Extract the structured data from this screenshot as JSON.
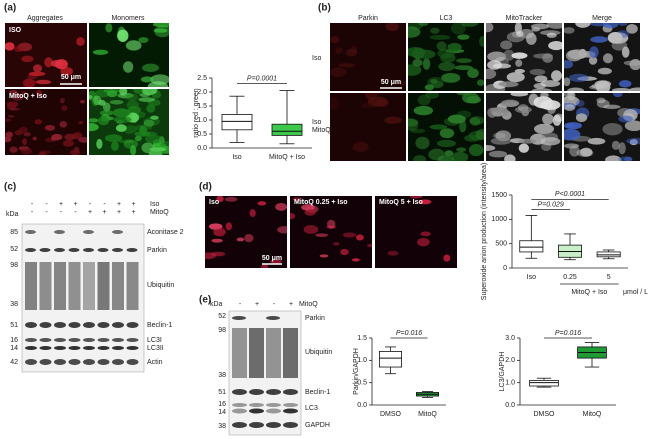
{
  "chart_data": [
    {
      "type": "box",
      "ylabel": "ratio red : green",
      "categories": [
        "Iso",
        "MitoQ + Iso"
      ],
      "boxes": [
        {
          "min": 0.2,
          "q1": 0.65,
          "median": 0.95,
          "q3": 1.2,
          "max": 1.85
        },
        {
          "min": 0.15,
          "q1": 0.45,
          "median": 0.6,
          "q3": 0.85,
          "max": 2.05
        }
      ],
      "colors": [
        "#ffffff",
        "#3cc84a"
      ],
      "ylim": [
        0,
        2.5
      ],
      "yticks": [
        {
          "value": 0,
          "label": "0.0"
        },
        {
          "value": 0.5,
          "label": "0.5"
        },
        {
          "value": 1,
          "label": "1.0"
        },
        {
          "value": 1.5,
          "label": "1.5"
        },
        {
          "value": 2,
          "label": "2.0"
        },
        {
          "value": 2.5,
          "label": "2.5"
        }
      ],
      "annotations": [
        "P=0.0001"
      ]
    },
    {
      "type": "box",
      "ylabel": "Superoxide anion production (intensity/area)",
      "categories": [
        "Iso",
        "0.25",
        "5"
      ],
      "x_group_label": "MitoQ + Iso",
      "x_unit": "μmol / L",
      "boxes": [
        {
          "min": 200,
          "q1": 330,
          "median": 430,
          "q3": 560,
          "max": 1080
        },
        {
          "min": 170,
          "q1": 220,
          "median": 340,
          "q3": 470,
          "max": 700
        },
        {
          "min": 190,
          "q1": 230,
          "median": 270,
          "q3": 330,
          "max": 370
        }
      ],
      "colors": [
        "#ffffff",
        "#c8efc8",
        "#ffffff"
      ],
      "ylim": [
        0,
        1500
      ],
      "yticks": [
        0,
        500,
        1000,
        1500
      ],
      "annotations": [
        "P=0.029",
        "P<0.0001"
      ]
    },
    {
      "type": "box",
      "ylabel": "Parkin/GAPDH",
      "categories": [
        "DMSO",
        "MitoQ"
      ],
      "boxes": [
        {
          "min": 0.7,
          "q1": 0.85,
          "median": 1.05,
          "q3": 1.2,
          "max": 1.3
        },
        {
          "min": 0.17,
          "q1": 0.2,
          "median": 0.24,
          "q3": 0.28,
          "max": 0.3
        }
      ],
      "colors": [
        "#ffffff",
        "#1f9a35"
      ],
      "ylim": [
        0,
        1.5
      ],
      "yticks": [
        {
          "value": 0,
          "label": "0.0"
        },
        {
          "value": 0.5,
          "label": "0.5"
        },
        {
          "value": 1,
          "label": "1.0"
        },
        {
          "value": 1.5,
          "label": "1.5"
        }
      ],
      "annotations": [
        "P=0.016"
      ]
    },
    {
      "type": "box",
      "ylabel": "LC3/GAPDH",
      "categories": [
        "DMSO",
        "MitoQ"
      ],
      "boxes": [
        {
          "min": 0.8,
          "q1": 0.85,
          "median": 1.0,
          "q3": 1.1,
          "max": 1.2
        },
        {
          "min": 1.7,
          "q1": 2.1,
          "median": 2.35,
          "q3": 2.6,
          "max": 2.8
        }
      ],
      "colors": [
        "#ffffff",
        "#1f9a35"
      ],
      "ylim": [
        0,
        3
      ],
      "yticks": [
        {
          "value": 0,
          "label": "0.0"
        },
        {
          "value": 1,
          "label": "1.0"
        },
        {
          "value": 2,
          "label": "2.0"
        },
        {
          "value": 3,
          "label": "3.0"
        }
      ],
      "annotations": [
        "P=0.016"
      ]
    }
  ],
  "panel_a": {
    "label": "(a)",
    "columns": [
      "Aggregates",
      "Monomers"
    ],
    "rows": [
      "ISO",
      "MitoQ + Iso"
    ],
    "scale": "50 μm"
  },
  "panel_b": {
    "label": "(b)",
    "columns": [
      "Parkin",
      "LC3",
      "MitoTracker",
      "Merge"
    ],
    "rows": [
      "Iso",
      "Iso\nMitoQ"
    ],
    "scale": "50 μm"
  },
  "panel_c": {
    "label": "(c)",
    "kda": "kDa",
    "conditions": [
      {
        "name": "Iso",
        "signs": [
          "-",
          "-",
          "+",
          "+",
          "-",
          "-",
          "+",
          "+"
        ]
      },
      {
        "name": "MitoQ",
        "signs": [
          "-",
          "-",
          "-",
          "-",
          "+",
          "+",
          "+",
          "+"
        ]
      }
    ],
    "bands": [
      "Aconitase 2",
      "Parkin",
      "Ubiquitin",
      "Beclin-1",
      "LC3I",
      "LC3II",
      "Actin"
    ],
    "markers": [
      85,
      52,
      98,
      38,
      51,
      16,
      14,
      42
    ]
  },
  "panel_d": {
    "label": "(d)",
    "images": [
      "Iso",
      "MitoQ 0.25 + Iso",
      "MitoQ 5 + Iso"
    ],
    "scale": "50 μm"
  },
  "panel_e": {
    "label": "(e)",
    "kda": "kDa",
    "condition": "MitoQ",
    "signs": [
      "-",
      "+",
      "-",
      "+"
    ],
    "bands": [
      "Parkin",
      "Ubiquitin",
      "Beclin-1",
      "LC3",
      "GAPDH"
    ],
    "markers": [
      52,
      98,
      38,
      51,
      16,
      14,
      38
    ]
  }
}
